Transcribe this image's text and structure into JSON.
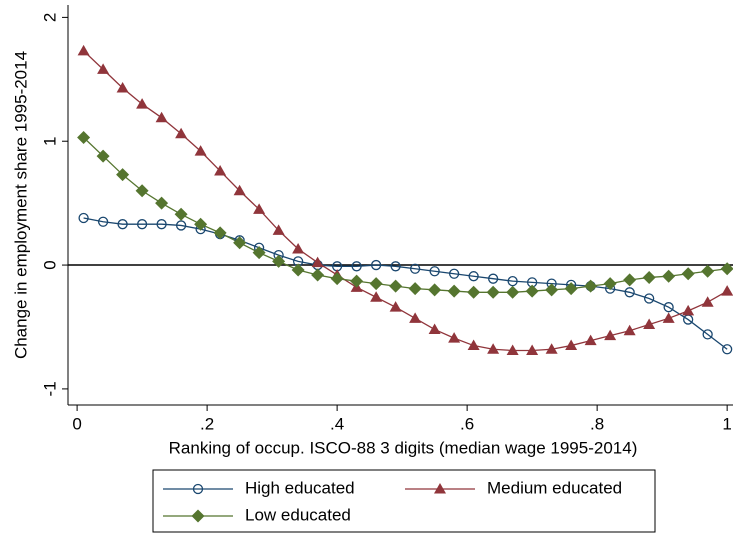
{
  "chart_data": {
    "type": "line",
    "xlabel": "Ranking of occup. ISCO-88 3 digits (median wage 1995-2014)",
    "ylabel": "Change in employment share 1995-2014",
    "x": [
      0.01,
      0.04,
      0.07,
      0.1,
      0.13,
      0.16,
      0.19,
      0.22,
      0.25,
      0.28,
      0.31,
      0.34,
      0.37,
      0.4,
      0.43,
      0.46,
      0.49,
      0.52,
      0.55,
      0.58,
      0.61,
      0.64,
      0.67,
      0.7,
      0.73,
      0.76,
      0.79,
      0.82,
      0.85,
      0.88,
      0.91,
      0.94,
      0.97,
      1.0
    ],
    "series": [
      {
        "name": "High educated",
        "color": "#1a476f",
        "marker": "circle",
        "values": [
          0.38,
          0.35,
          0.33,
          0.33,
          0.33,
          0.32,
          0.29,
          0.25,
          0.2,
          0.14,
          0.08,
          0.03,
          0.0,
          -0.01,
          -0.01,
          0.0,
          -0.01,
          -0.03,
          -0.05,
          -0.07,
          -0.09,
          -0.11,
          -0.13,
          -0.14,
          -0.15,
          -0.16,
          -0.17,
          -0.19,
          -0.22,
          -0.27,
          -0.34,
          -0.44,
          -0.56,
          -0.68
        ]
      },
      {
        "name": "Medium educated",
        "color": "#90353b",
        "marker": "triangle",
        "values": [
          1.73,
          1.58,
          1.43,
          1.3,
          1.19,
          1.06,
          0.92,
          0.76,
          0.6,
          0.45,
          0.28,
          0.13,
          0.02,
          -0.08,
          -0.18,
          -0.26,
          -0.34,
          -0.43,
          -0.52,
          -0.59,
          -0.65,
          -0.68,
          -0.69,
          -0.69,
          -0.68,
          -0.65,
          -0.61,
          -0.57,
          -0.53,
          -0.48,
          -0.43,
          -0.37,
          -0.3,
          -0.21
        ]
      },
      {
        "name": "Low educated",
        "color": "#55752f",
        "marker": "diamond",
        "values": [
          1.03,
          0.88,
          0.73,
          0.6,
          0.5,
          0.41,
          0.33,
          0.26,
          0.18,
          0.1,
          0.03,
          -0.04,
          -0.08,
          -0.11,
          -0.13,
          -0.15,
          -0.17,
          -0.19,
          -0.2,
          -0.21,
          -0.22,
          -0.22,
          -0.22,
          -0.21,
          -0.2,
          -0.19,
          -0.17,
          -0.15,
          -0.12,
          -0.1,
          -0.09,
          -0.07,
          -0.05,
          -0.03
        ]
      }
    ],
    "xlim": [
      -0.014,
      1.009
    ],
    "ylim": [
      -1.13,
      2.1
    ],
    "xticks": [
      0,
      {
        "value": 0.2,
        "label": ".2"
      },
      {
        "value": 0.4,
        "label": ".4"
      },
      {
        "value": 0.6,
        "label": ".6"
      },
      {
        "value": 0.8,
        "label": ".8"
      },
      1
    ],
    "yticks": [
      -1,
      0,
      1,
      2
    ],
    "zero_line": true,
    "legend": "bottom"
  }
}
